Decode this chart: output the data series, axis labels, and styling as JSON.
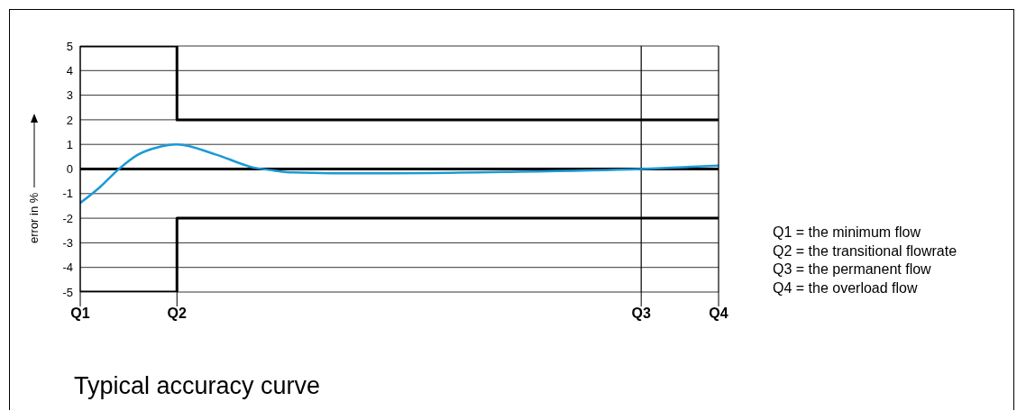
{
  "chart_data": {
    "type": "line",
    "title": "Typical accuracy curve",
    "ylabel": "error in %",
    "categories": [
      "Q1",
      null,
      null,
      null,
      null,
      "Q2",
      null,
      null,
      null,
      null,
      null,
      null,
      null,
      null,
      null,
      null,
      null,
      null,
      null,
      null,
      null,
      null,
      null,
      null,
      null,
      null,
      null,
      null,
      null,
      "Q3",
      null,
      null,
      null,
      "Q4"
    ],
    "ylim": [
      -5,
      5
    ],
    "yticks": [
      -5,
      -4,
      -3,
      -2,
      -1,
      0,
      1,
      2,
      3,
      4,
      5
    ],
    "grid": "y",
    "legend": false,
    "marker": "none",
    "line_style": "solid",
    "series": [
      {
        "color": "#1a9ad6",
        "values": [
          -1.38,
          -0.75,
          0,
          0.59,
          0.88,
          1,
          null,
          0.59,
          null,
          0.05,
          -0.06,
          -0.14,
          null,
          -0.17,
          null,
          null,
          -0.17,
          null,
          null,
          null,
          null,
          null,
          -0.12,
          null,
          null,
          null,
          null,
          null,
          null,
          0,
          null,
          null,
          null,
          0.14
        ]
      },
      {
        "type": "step",
        "color": "#000000",
        "values": [
          5,
          null,
          null,
          null,
          null,
          2,
          null,
          null,
          null,
          null,
          null,
          null,
          null,
          null,
          null,
          null,
          null,
          null,
          null,
          null,
          null,
          null,
          null,
          null,
          null,
          null,
          null,
          null,
          null,
          null,
          null,
          null,
          null,
          2
        ]
      },
      {
        "type": "step",
        "color": "#000000",
        "values": [
          -5,
          null,
          null,
          null,
          null,
          -2,
          null,
          null,
          null,
          null,
          null,
          null,
          null,
          null,
          null,
          null,
          null,
          null,
          null,
          null,
          null,
          null,
          null,
          null,
          null,
          null,
          null,
          null,
          null,
          null,
          null,
          null,
          null,
          -2
        ]
      }
    ],
    "ref_lines": [
      {
        "axis": "y",
        "value": 0,
        "color": "#000000"
      },
      {
        "axis": "x",
        "value": "Q3",
        "color": "#000000"
      }
    ],
    "annotations": [
      "Q1 = the minimum flow",
      "Q2 = the transitional flowrate",
      "Q3 = the permanent flow",
      "Q4 = the overload flow"
    ]
  }
}
